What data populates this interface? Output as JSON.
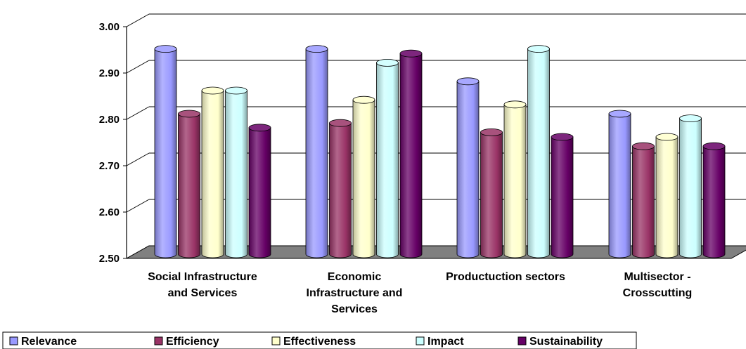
{
  "chart_data": {
    "type": "bar",
    "categories": [
      [
        "Social Infrastructure",
        "and Services"
      ],
      [
        "Economic",
        "Infrastructure and",
        "Services"
      ],
      [
        "Productuction sectors"
      ],
      [
        "Multisector -",
        "Crosscutting"
      ]
    ],
    "series": [
      {
        "name": "Relevance",
        "color": "#9999ff",
        "values": [
          2.94,
          2.94,
          2.87,
          2.8
        ]
      },
      {
        "name": "Efficiency",
        "color": "#993366",
        "values": [
          2.8,
          2.78,
          2.76,
          2.73
        ]
      },
      {
        "name": "Effectiveness",
        "color": "#ffffcc",
        "values": [
          2.85,
          2.83,
          2.82,
          2.75
        ]
      },
      {
        "name": "Impact",
        "color": "#ccffff",
        "values": [
          2.85,
          2.91,
          2.94,
          2.79
        ]
      },
      {
        "name": "Sustainability",
        "color": "#660066",
        "values": [
          2.77,
          2.93,
          2.75,
          2.73
        ]
      }
    ],
    "yticks": [
      "2.50",
      "2.60",
      "2.70",
      "2.80",
      "2.90",
      "3.00"
    ],
    "ylim": [
      2.5,
      3.0
    ],
    "grid": true,
    "style": "3d-cylinder",
    "legend_position": "bottom"
  }
}
